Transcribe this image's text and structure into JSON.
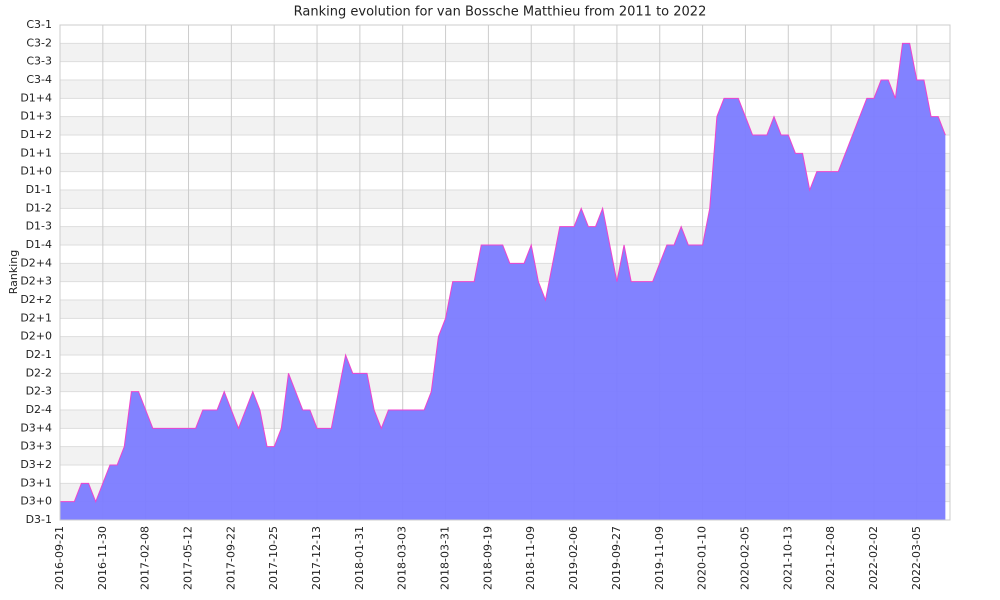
{
  "chart_data": {
    "type": "area",
    "title": "Ranking evolution for van Bossche Matthieu from 2011 to 2022",
    "ylabel": "Ranking",
    "categories": [
      "2016-09-21",
      null,
      null,
      null,
      null,
      null,
      "2016-11-30",
      null,
      null,
      null,
      null,
      null,
      "2017-02-08",
      null,
      null,
      null,
      null,
      null,
      "2017-05-12",
      null,
      null,
      null,
      null,
      null,
      "2017-09-22",
      null,
      null,
      null,
      null,
      null,
      "2017-10-25",
      null,
      null,
      null,
      null,
      null,
      "2017-12-13",
      null,
      null,
      null,
      null,
      null,
      "2018-01-31",
      null,
      null,
      null,
      null,
      null,
      "2018-03-03",
      null,
      null,
      null,
      null,
      null,
      "2018-03-31",
      null,
      null,
      null,
      null,
      null,
      "2018-09-19",
      null,
      null,
      null,
      null,
      null,
      "2018-11-09",
      null,
      null,
      null,
      null,
      null,
      "2019-02-06",
      null,
      null,
      null,
      null,
      null,
      "2019-09-27",
      null,
      null,
      null,
      null,
      null,
      "2019-11-09",
      null,
      null,
      null,
      null,
      null,
      "2020-01-10",
      null,
      null,
      null,
      null,
      null,
      "2020-02-05",
      null,
      null,
      null,
      null,
      null,
      "2021-10-13",
      null,
      null,
      null,
      null,
      null,
      "2021-12-08",
      null,
      null,
      null,
      null,
      null,
      "2022-02-02",
      null,
      null,
      null,
      null,
      null,
      "2022-03-05",
      null,
      null,
      null,
      null
    ],
    "values": [
      1,
      1,
      1,
      2,
      2,
      1,
      2,
      3,
      3,
      4,
      7,
      7,
      6,
      5,
      5,
      5,
      5,
      5,
      5,
      5,
      6,
      6,
      6,
      7,
      6,
      5,
      6,
      7,
      6,
      4,
      4,
      5,
      8,
      7,
      6,
      6,
      5,
      5,
      5,
      7,
      9,
      8,
      8,
      8,
      6,
      5,
      6,
      6,
      6,
      6,
      6,
      6,
      7,
      10,
      11,
      13,
      13,
      13,
      13,
      15,
      15,
      15,
      15,
      14,
      14,
      14,
      15,
      13,
      12,
      14,
      16,
      16,
      16,
      17,
      16,
      16,
      17,
      15,
      13,
      15,
      13,
      13,
      13,
      13,
      14,
      15,
      15,
      16,
      15,
      15,
      15,
      17,
      22,
      23,
      23,
      23,
      22,
      21,
      21,
      21,
      22,
      21,
      21,
      20,
      20,
      18,
      19,
      19,
      19,
      19,
      20,
      21,
      22,
      23,
      23,
      24,
      24,
      23,
      26,
      26,
      24,
      24,
      22,
      22,
      21
    ],
    "color": "#7b7bff",
    "line_color": "#ee44cc",
    "ylim": [
      0,
      27
    ],
    "yticks": [
      {
        "value": 0,
        "label": "D3-1"
      },
      {
        "value": 1,
        "label": "D3+0"
      },
      {
        "value": 2,
        "label": "D3+1"
      },
      {
        "value": 3,
        "label": "D3+2"
      },
      {
        "value": 4,
        "label": "D3+3"
      },
      {
        "value": 5,
        "label": "D3+4"
      },
      {
        "value": 6,
        "label": "D2-4"
      },
      {
        "value": 7,
        "label": "D2-3"
      },
      {
        "value": 8,
        "label": "D2-2"
      },
      {
        "value": 9,
        "label": "D2-1"
      },
      {
        "value": 10,
        "label": "D2+0"
      },
      {
        "value": 11,
        "label": "D2+1"
      },
      {
        "value": 12,
        "label": "D2+2"
      },
      {
        "value": 13,
        "label": "D2+3"
      },
      {
        "value": 14,
        "label": "D2+4"
      },
      {
        "value": 15,
        "label": "D1-4"
      },
      {
        "value": 16,
        "label": "D1-3"
      },
      {
        "value": 17,
        "label": "D1-2"
      },
      {
        "value": 18,
        "label": "D1-1"
      },
      {
        "value": 19,
        "label": "D1+0"
      },
      {
        "value": 20,
        "label": "D1+1"
      },
      {
        "value": 21,
        "label": "D1+2"
      },
      {
        "value": 22,
        "label": "D1+3"
      },
      {
        "value": 23,
        "label": "D1+4"
      },
      {
        "value": 24,
        "label": "C3-4"
      },
      {
        "value": 25,
        "label": "C3-3"
      },
      {
        "value": 26,
        "label": "C3-2"
      },
      {
        "value": 27,
        "label": "C3-1"
      }
    ],
    "grid": true
  }
}
